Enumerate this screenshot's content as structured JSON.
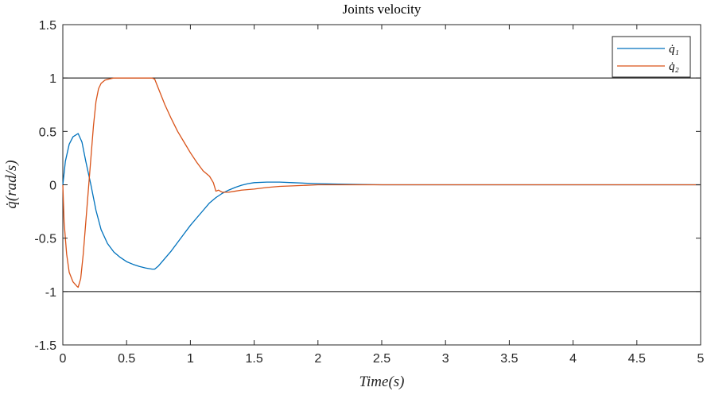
{
  "chart_data": {
    "type": "line",
    "title": "Joints velocity",
    "xlabel": "Time(s)",
    "ylabel": "q̇(rad/s)",
    "xlim": [
      0,
      5
    ],
    "ylim": [
      -1.5,
      1.5
    ],
    "x_ticks": [
      0,
      0.5,
      1,
      1.5,
      2,
      2.5,
      3,
      3.5,
      4,
      4.5,
      5
    ],
    "y_ticks": [
      -1.5,
      -1,
      -0.5,
      0,
      0.5,
      1,
      1.5
    ],
    "x_tick_labels": [
      "0",
      "0.5",
      "1",
      "1.5",
      "2",
      "2.5",
      "3",
      "3.5",
      "4",
      "4.5",
      "5"
    ],
    "y_tick_labels": [
      "-1.5",
      "-1",
      "-0.5",
      "0",
      "0.5",
      "1",
      "1.5"
    ],
    "reference_lines": [
      1,
      -1
    ],
    "grid": false,
    "legend_position": "top-right",
    "series": [
      {
        "name": "q̇₁",
        "color": "#0072BD",
        "points": [
          [
            0,
            0
          ],
          [
            0.02,
            0.22
          ],
          [
            0.05,
            0.38
          ],
          [
            0.08,
            0.45
          ],
          [
            0.12,
            0.48
          ],
          [
            0.15,
            0.4
          ],
          [
            0.18,
            0.22
          ],
          [
            0.22,
            0.0
          ],
          [
            0.26,
            -0.24
          ],
          [
            0.3,
            -0.42
          ],
          [
            0.35,
            -0.55
          ],
          [
            0.4,
            -0.63
          ],
          [
            0.45,
            -0.68
          ],
          [
            0.5,
            -0.72
          ],
          [
            0.55,
            -0.745
          ],
          [
            0.6,
            -0.765
          ],
          [
            0.65,
            -0.78
          ],
          [
            0.7,
            -0.79
          ],
          [
            0.72,
            -0.79
          ],
          [
            0.75,
            -0.76
          ],
          [
            0.8,
            -0.69
          ],
          [
            0.85,
            -0.62
          ],
          [
            0.9,
            -0.54
          ],
          [
            0.95,
            -0.46
          ],
          [
            1.0,
            -0.38
          ],
          [
            1.05,
            -0.31
          ],
          [
            1.1,
            -0.24
          ],
          [
            1.15,
            -0.17
          ],
          [
            1.2,
            -0.12
          ],
          [
            1.25,
            -0.08
          ],
          [
            1.3,
            -0.05
          ],
          [
            1.35,
            -0.025
          ],
          [
            1.4,
            -0.005
          ],
          [
            1.45,
            0.01
          ],
          [
            1.5,
            0.02
          ],
          [
            1.6,
            0.025
          ],
          [
            1.7,
            0.025
          ],
          [
            1.8,
            0.02
          ],
          [
            1.9,
            0.015
          ],
          [
            2.0,
            0.01
          ],
          [
            2.2,
            0.005
          ],
          [
            2.5,
            0.0
          ],
          [
            3.0,
            0.0
          ],
          [
            3.5,
            0.0
          ],
          [
            4.0,
            0.0
          ],
          [
            4.5,
            0.0
          ],
          [
            5.0,
            0.0
          ]
        ]
      },
      {
        "name": "q̇₂",
        "color": "#D95319",
        "points": [
          [
            0,
            0
          ],
          [
            0.01,
            -0.35
          ],
          [
            0.03,
            -0.65
          ],
          [
            0.05,
            -0.82
          ],
          [
            0.08,
            -0.91
          ],
          [
            0.11,
            -0.95
          ],
          [
            0.12,
            -0.96
          ],
          [
            0.14,
            -0.88
          ],
          [
            0.16,
            -0.65
          ],
          [
            0.18,
            -0.35
          ],
          [
            0.2,
            -0.05
          ],
          [
            0.22,
            0.25
          ],
          [
            0.24,
            0.55
          ],
          [
            0.26,
            0.78
          ],
          [
            0.28,
            0.9
          ],
          [
            0.3,
            0.95
          ],
          [
            0.33,
            0.98
          ],
          [
            0.36,
            0.99
          ],
          [
            0.4,
            1.0
          ],
          [
            0.5,
            1.0
          ],
          [
            0.6,
            1.0
          ],
          [
            0.7,
            1.0
          ],
          [
            0.72,
            0.99
          ],
          [
            0.75,
            0.9
          ],
          [
            0.8,
            0.75
          ],
          [
            0.85,
            0.62
          ],
          [
            0.9,
            0.5
          ],
          [
            0.95,
            0.4
          ],
          [
            1.0,
            0.3
          ],
          [
            1.05,
            0.21
          ],
          [
            1.1,
            0.13
          ],
          [
            1.15,
            0.08
          ],
          [
            1.18,
            0.02
          ],
          [
            1.2,
            -0.06
          ],
          [
            1.22,
            -0.05
          ],
          [
            1.25,
            -0.07
          ],
          [
            1.3,
            -0.07
          ],
          [
            1.35,
            -0.06
          ],
          [
            1.4,
            -0.05
          ],
          [
            1.5,
            -0.04
          ],
          [
            1.6,
            -0.025
          ],
          [
            1.7,
            -0.015
          ],
          [
            1.8,
            -0.01
          ],
          [
            1.9,
            -0.005
          ],
          [
            2.0,
            0.0
          ],
          [
            2.5,
            0.0
          ],
          [
            3.0,
            0.0
          ],
          [
            3.5,
            0.0
          ],
          [
            4.0,
            0.0
          ],
          [
            4.5,
            0.0
          ],
          [
            5.0,
            0.0
          ]
        ]
      }
    ]
  }
}
